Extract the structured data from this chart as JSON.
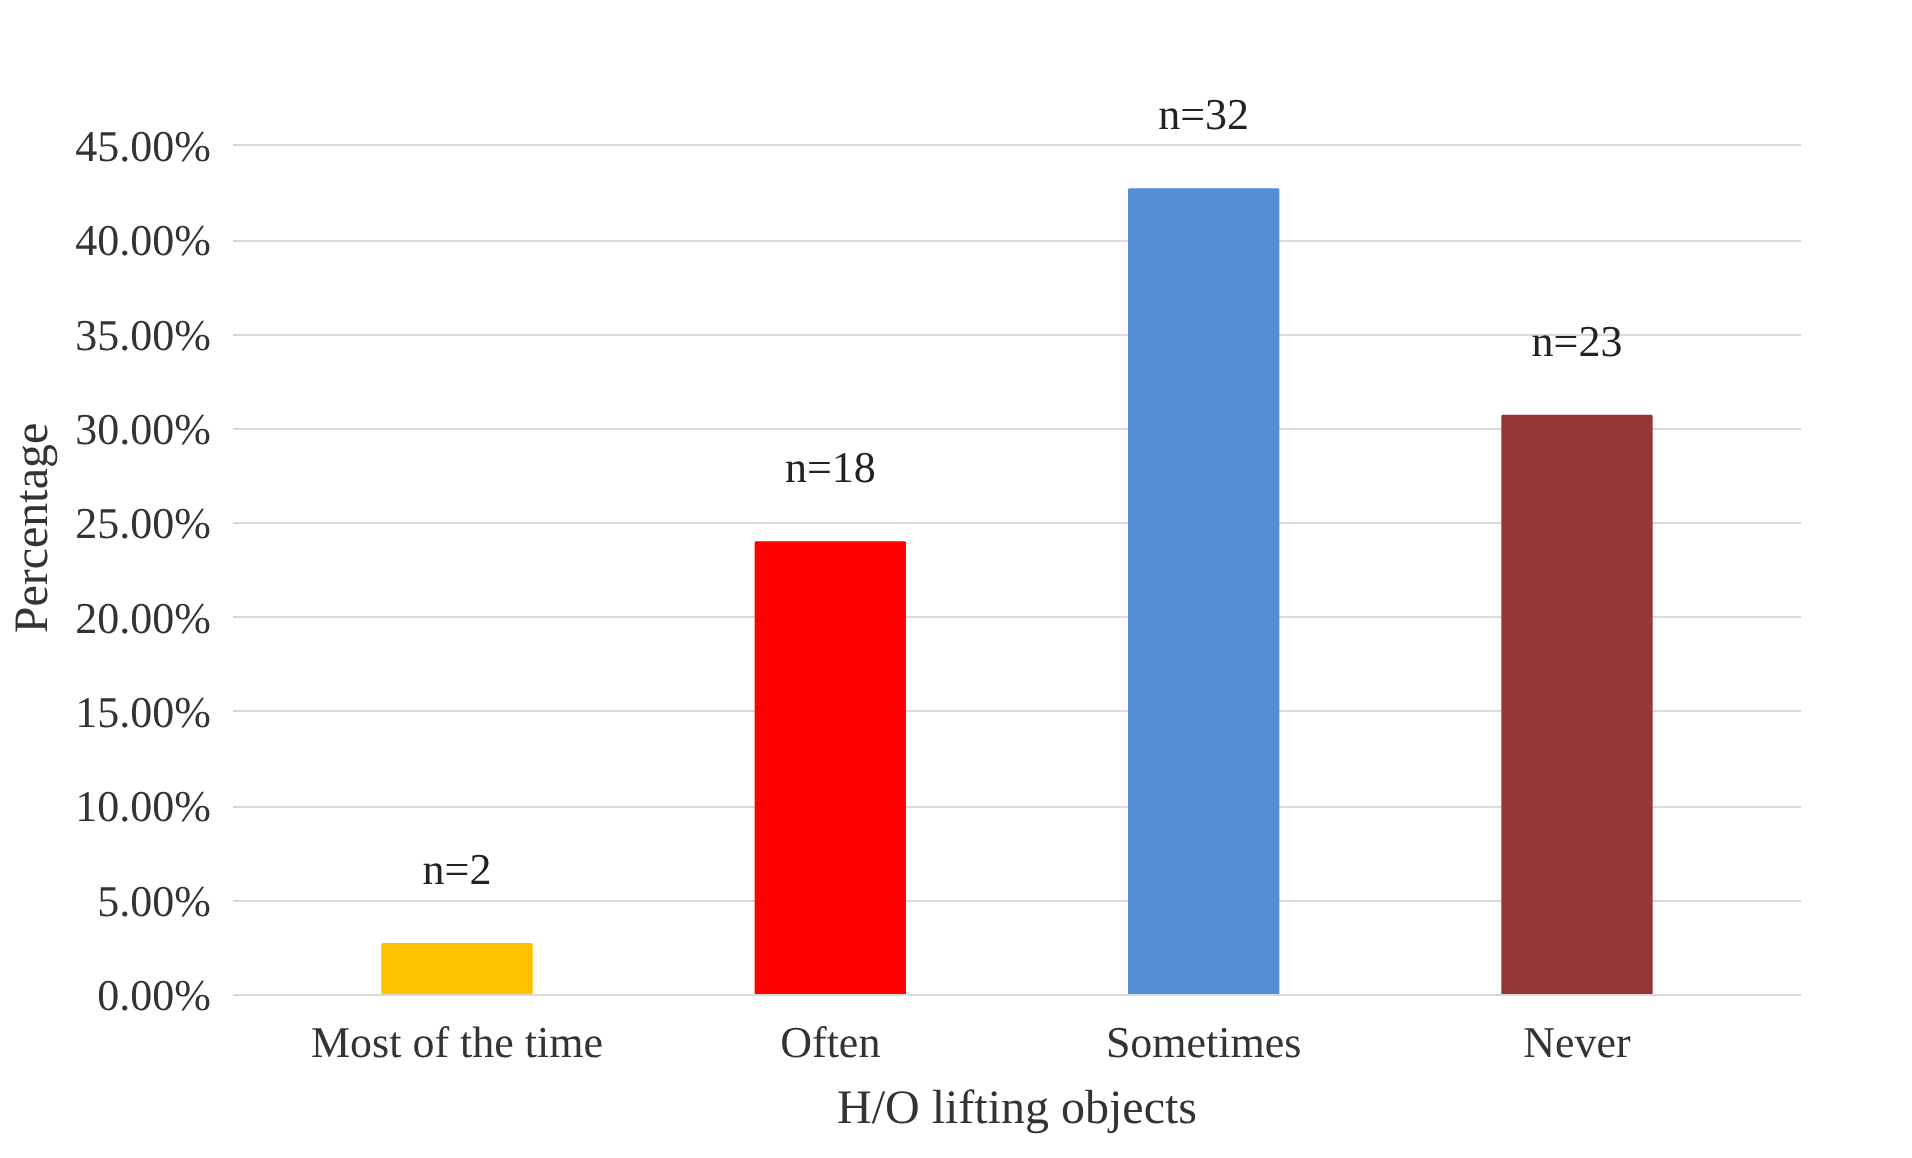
{
  "chart_data": {
    "type": "bar",
    "xlabel": "H/O lifting objects",
    "ylabel": "Percentage",
    "categories": [
      "Most of the time",
      "Often",
      "Sometimes",
      "Never"
    ],
    "values": [
      2.7,
      24,
      42.7,
      30.7
    ],
    "colors": [
      "#ffc000",
      "#ff0000",
      "#558ed5",
      "#953735"
    ],
    "annotations": [
      {
        "text": "n=2",
        "x": "Most of the time",
        "y": 2.7
      },
      {
        "text": "n=18",
        "x": "Often",
        "y": 24
      },
      {
        "text": "n=32",
        "x": "Sometimes",
        "y": 42.7
      },
      {
        "text": "n=23",
        "x": "Never",
        "y": 30.7
      }
    ],
    "ylim": [
      0,
      45
    ],
    "yticks": [
      {
        "value": 0,
        "label": "0.00%"
      },
      {
        "value": 5,
        "label": "5.00%"
      },
      {
        "value": 10,
        "label": "10.00%"
      },
      {
        "value": 15,
        "label": "15.00%"
      },
      {
        "value": 20,
        "label": "20.00%"
      },
      {
        "value": 25,
        "label": "25.00%"
      },
      {
        "value": 30,
        "label": "30.00%"
      },
      {
        "value": 35,
        "label": "35.00%"
      },
      {
        "value": 40,
        "label": "40.00%"
      },
      {
        "value": 45,
        "label": "45.00%"
      }
    ],
    "grid": "y"
  }
}
